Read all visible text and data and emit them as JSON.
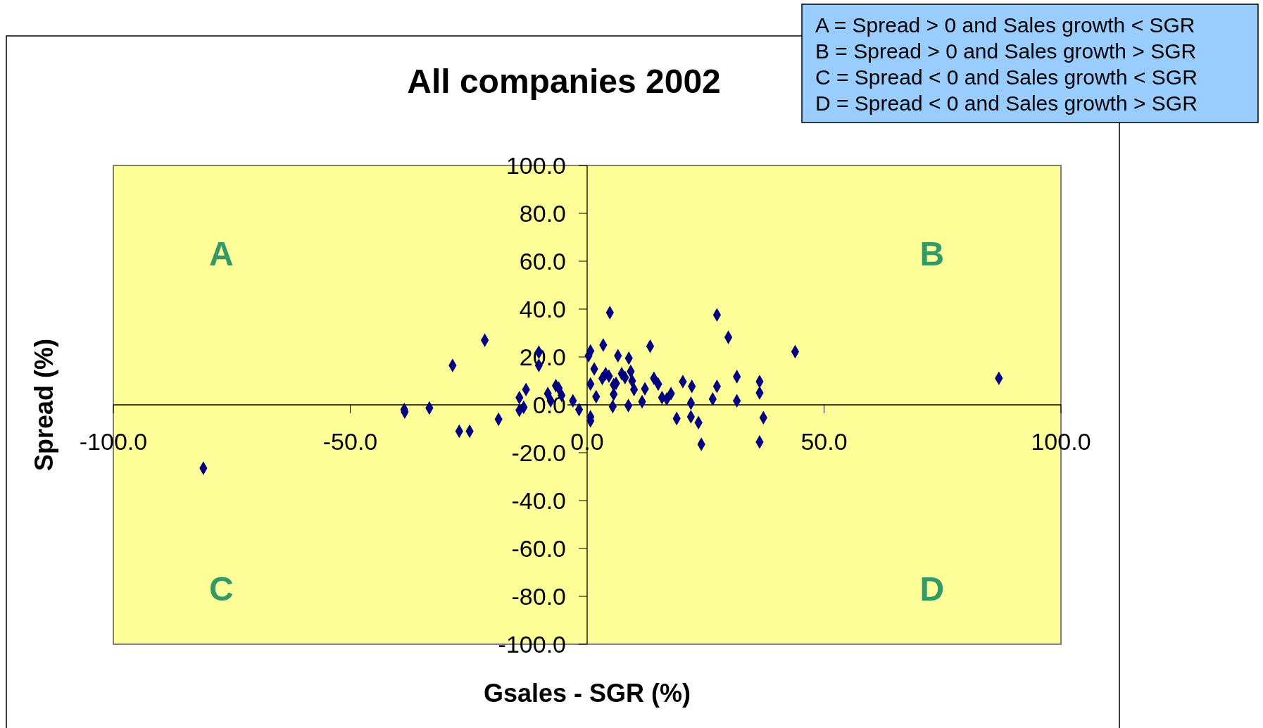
{
  "chart_data": {
    "type": "scatter",
    "title": "All companies 2002",
    "xlabel": "Gsales - SGR (%)",
    "ylabel": "Spread (%)",
    "marker": "diamond",
    "grid": false,
    "xlim": [
      -100,
      100
    ],
    "xticks": [
      {
        "value": -100,
        "label": "-100.0"
      },
      {
        "value": -50,
        "label": "-50.0"
      },
      {
        "value": 0,
        "label": "0.0"
      },
      {
        "value": 50,
        "label": "50.0"
      },
      {
        "value": 100,
        "label": "100.0"
      }
    ],
    "ylim": [
      -100,
      100
    ],
    "yticks": [
      {
        "value": -100,
        "label": "-100.0"
      },
      {
        "value": -80,
        "label": "-80.0"
      },
      {
        "value": -60,
        "label": "-60.0"
      },
      {
        "value": -40,
        "label": "-40.0"
      },
      {
        "value": -20,
        "label": "-20.0"
      },
      {
        "value": 0,
        "label": "0.0"
      },
      {
        "value": 20,
        "label": "20.0"
      },
      {
        "value": 40,
        "label": "40.0"
      },
      {
        "value": 60,
        "label": "60.0"
      },
      {
        "value": 80,
        "label": "80.0"
      },
      {
        "value": 100,
        "label": "100.0"
      }
    ],
    "series": [
      {
        "color": "#000080",
        "x": [
          -81,
          -38.6,
          -38.5,
          -33.3,
          -28.4,
          -27,
          -24.8,
          -21.6,
          -18.7,
          -14.3,
          -14.3,
          -12.9,
          -13.4,
          -10.2,
          -10.2,
          -8.3,
          -7.7,
          -6.6,
          -6,
          -5.4,
          -3,
          -1.7,
          0.3,
          0.7,
          0.7,
          0.7,
          0.7,
          1.5,
          1.9,
          3.4,
          4.8,
          3.2,
          3.9,
          4.6,
          5.6,
          5.6,
          5.4,
          6.1,
          6.5,
          7.3,
          8,
          8.8,
          9.2,
          8.7,
          9.5,
          9.9,
          11.6,
          12.2,
          13.3,
          14.1,
          15,
          15.8,
          16.8,
          17.7,
          18.9,
          20.2,
          21.9,
          22.1,
          21.9,
          23.5,
          24.1,
          26.5,
          27.4,
          27.4,
          29.8,
          31.6,
          31.6,
          36.4,
          36.4,
          37.2,
          36.4,
          43.9,
          86.9
        ],
        "values": [
          -26.5,
          -2,
          -3,
          -1.3,
          16.5,
          -11,
          -11,
          27,
          -6,
          3,
          -2.3,
          6.4,
          -1,
          22,
          16.5,
          4.7,
          1.7,
          8,
          7,
          4,
          1.7,
          -2,
          20.5,
          22.5,
          -5,
          -6.7,
          8.7,
          15,
          3.4,
          25,
          38.5,
          11,
          13,
          12,
          8.4,
          4.4,
          -0.7,
          9,
          20.5,
          13,
          11.4,
          19.5,
          14,
          -0.3,
          10,
          6.4,
          1.3,
          6.7,
          24.5,
          11.1,
          8.7,
          3,
          2.4,
          4.7,
          -5.7,
          9.7,
          0.7,
          7.7,
          -5,
          -7.4,
          -16.5,
          2.4,
          37.6,
          7.7,
          28.2,
          11.8,
          1.7,
          9.7,
          5,
          -5.4,
          -15.5,
          22.2,
          11.1
        ]
      }
    ],
    "annotations": [
      "A",
      "B",
      "C",
      "D",
      "A = Spread > 0 and Sales growth < SGR",
      "B = Spread > 0 and Sales growth > SGR",
      "C = Spread < 0 and Sales growth < SGR",
      "D = Spread < 0 and Sales growth > SGR"
    ]
  }
}
